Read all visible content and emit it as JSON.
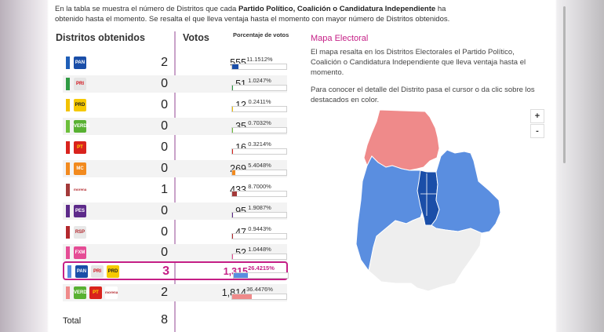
{
  "intro": {
    "p1": "En la tabla se muestra el número de Distritos que cada ",
    "bold": "Partido Político, Coalición o Candidatura Independiente",
    "p2": " ha obtenido hasta el momento. Se resalta el que lleva ventaja hasta el momento con mayor número de Distritos obtenidos."
  },
  "headers": {
    "distritos": "Distritos obtenidos",
    "votos": "Votos",
    "porcentaje": "Porcentaje de votos"
  },
  "rows": [
    {
      "stripe": "#1f5fb8",
      "logos": [
        {
          "text": "PAN",
          "bg": "#1a4ea8",
          "fg": "#fff"
        }
      ],
      "distritos": "2",
      "votos": "555",
      "pct": "11.1512%",
      "fill": 0.11,
      "bar": "#1a4ea8"
    },
    {
      "stripe": "#2f9a43",
      "logos": [
        {
          "text": "PRI",
          "bg": "#e5e5e5",
          "fg": "#d3121a"
        }
      ],
      "distritos": "0",
      "votos": "51",
      "pct": "1.0247%",
      "fill": 0.01,
      "bar": "#2f9a43"
    },
    {
      "stripe": "#f2c200",
      "logos": [
        {
          "text": "PRD",
          "bg": "#f6c900",
          "fg": "#222"
        }
      ],
      "distritos": "0",
      "votos": "12",
      "pct": "0.2411%",
      "fill": 0.003,
      "bar": "#f2c200"
    },
    {
      "stripe": "#6cbf3a",
      "logos": [
        {
          "text": "VERDE",
          "bg": "#58b132",
          "fg": "#fff"
        }
      ],
      "distritos": "0",
      "votos": "35",
      "pct": "0.7032%",
      "fill": 0.007,
      "bar": "#6cbf3a"
    },
    {
      "stripe": "#d9231d",
      "logos": [
        {
          "text": "PT",
          "bg": "#d9231d",
          "fg": "#ffde00"
        }
      ],
      "distritos": "0",
      "votos": "16",
      "pct": "0.3214%",
      "fill": 0.003,
      "bar": "#d9231d"
    },
    {
      "stripe": "#f28a1e",
      "logos": [
        {
          "text": "MC",
          "bg": "#f28a1e",
          "fg": "#fff"
        }
      ],
      "distritos": "0",
      "votos": "269",
      "pct": "5.4048%",
      "fill": 0.054,
      "bar": "#f28a1e"
    },
    {
      "stripe": "#a33a3a",
      "logos": [
        {
          "text": "morena",
          "bg": "#ffffff",
          "fg": "#b3282d"
        }
      ],
      "distritos": "1",
      "votos": "433",
      "pct": "8.7000%",
      "fill": 0.087,
      "bar": "#a33a3a"
    },
    {
      "stripe": "#5d2a8a",
      "logos": [
        {
          "text": "PES",
          "bg": "#5d2a8a",
          "fg": "#fff"
        }
      ],
      "distritos": "0",
      "votos": "95",
      "pct": "1.9087%",
      "fill": 0.019,
      "bar": "#5d2a8a"
    },
    {
      "stripe": "#b3282d",
      "logos": [
        {
          "text": "RSP",
          "bg": "#e8e8e8",
          "fg": "#b3282d"
        }
      ],
      "distritos": "0",
      "votos": "47",
      "pct": "0.9443%",
      "fill": 0.009,
      "bar": "#b3282d"
    },
    {
      "stripe": "#e54c95",
      "logos": [
        {
          "text": "FXM",
          "bg": "#e54c95",
          "fg": "#fff"
        }
      ],
      "distritos": "0",
      "votos": "52",
      "pct": "1.0448%",
      "fill": 0.01,
      "bar": "#e54c95"
    },
    {
      "stripe": "#5a8ee0",
      "logos": [
        {
          "text": "PAN",
          "bg": "#1a4ea8",
          "fg": "#fff"
        },
        {
          "text": "PRI",
          "bg": "#e5e5e5",
          "fg": "#d3121a"
        },
        {
          "text": "PRD",
          "bg": "#f6c900",
          "fg": "#222"
        }
      ],
      "distritos": "3",
      "votos": "1,315",
      "pct": "26.4215%",
      "fill": 0.264,
      "bar": "#5a8ee0",
      "highlight": true
    },
    {
      "stripe": "#ef8a8a",
      "logos": [
        {
          "text": "VERDE",
          "bg": "#58b132",
          "fg": "#fff"
        },
        {
          "text": "PT",
          "bg": "#d9231d",
          "fg": "#ffde00"
        },
        {
          "text": "morena",
          "bg": "#ffffff",
          "fg": "#b3282d"
        }
      ],
      "distritos": "2",
      "votos": "1,814",
      "pct": "36.4476%",
      "fill": 0.364,
      "bar": "#ef8a8a"
    }
  ],
  "total": {
    "label": "Total",
    "value": "8"
  },
  "map": {
    "title": "Mapa Electoral",
    "description": "El mapa resalta en los Distritos Electorales el Partido Político, Coalición o Candidatura Independiente que lleva ventaja hasta el momento.",
    "hint": "Para conocer el detalle del Distrito pasa el cursor o da clic sobre los destacados en color.",
    "zoom_in": "+",
    "zoom_out": "-"
  },
  "colors": {
    "accent": "#c51f86",
    "coalicion_pan": "#5a8ee0",
    "coalicion_morena": "#ef8a8a",
    "pan": "#1a4ea8",
    "no_result": "#eeeeee"
  }
}
